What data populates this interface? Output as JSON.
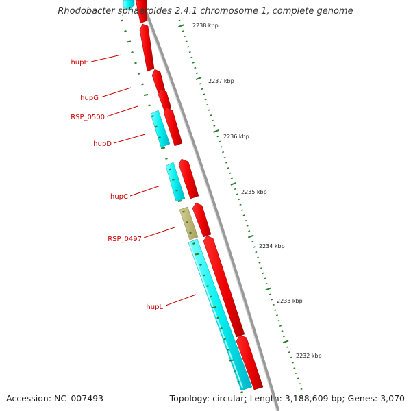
{
  "title": "Rhodobacter sphaeroides 2.4.1 chromosome 1, complete genome",
  "footer": {
    "accession": "Accession: NC_007493",
    "summary": "Topology: circular; Length: 3,188,609 bp; Genes: 3,070"
  },
  "colors": {
    "forward_gene": "#ff0000",
    "reverse_gene": "#00ffff",
    "other_feature": "#bdb76b",
    "backbone": "#888888",
    "tick": "#2e7d32",
    "gene_label": "#cc0000",
    "kbp_label": "#222222"
  },
  "kbp_ticks": [
    "2238 kbp",
    "2237 kbp",
    "2236 kbp",
    "2235 kbp",
    "2234 kbp",
    "2233 kbp",
    "2232 kbp"
  ],
  "gene_labels": [
    "hupH",
    "hupG",
    "RSP_0500",
    "hupD",
    "hupC",
    "RSP_0497",
    "hupL"
  ]
}
